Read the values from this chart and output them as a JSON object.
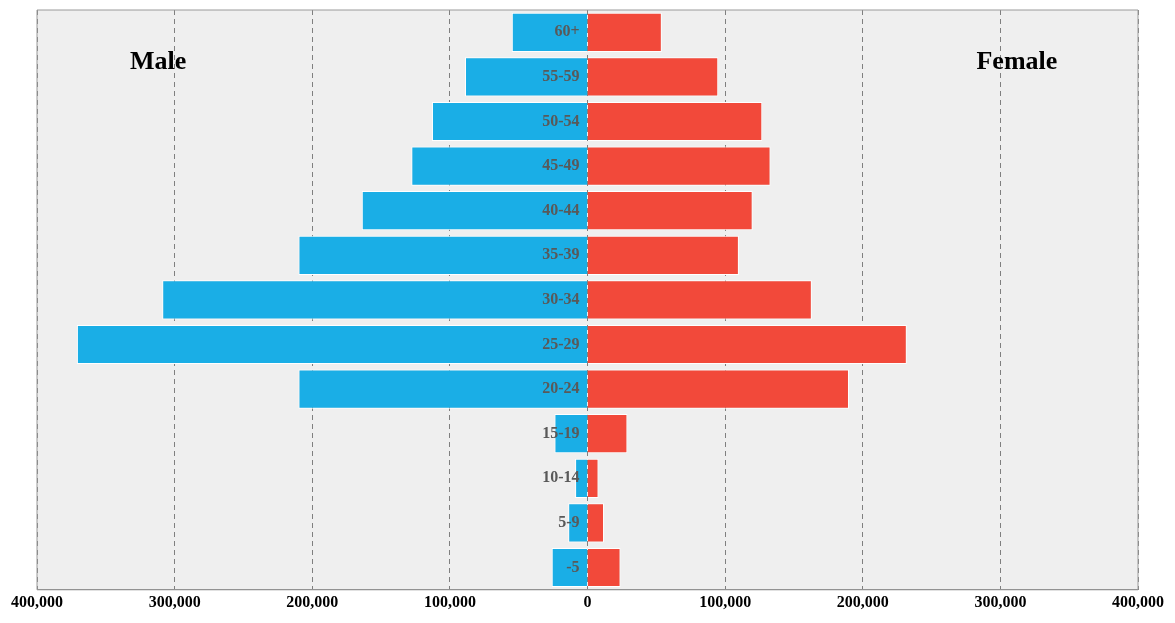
{
  "chart_data": {
    "type": "bar",
    "orientation": "horizontal",
    "stacked": true,
    "categories": [
      "60+",
      "55-59",
      "50-54",
      "45-49",
      "40-44",
      "35-39",
      "30-34",
      "25-29",
      "20-24",
      "15-19",
      "10-14",
      "5-9",
      "-5"
    ],
    "series": [
      {
        "color": "#1aaee6",
        "values": [
          -55000,
          -89000,
          -113000,
          -128000,
          -164000,
          -210000,
          -309000,
          -371000,
          -210000,
          -24000,
          -9000,
          -14000,
          -26000
        ]
      },
      {
        "color": "#f2493a",
        "values": [
          54000,
          95000,
          127000,
          133000,
          120000,
          110000,
          163000,
          232000,
          190000,
          29000,
          8000,
          12000,
          24000
        ]
      }
    ],
    "xlim": [
      -400000,
      400000
    ],
    "xticks": [
      {
        "value": -400000,
        "label": "400,000"
      },
      {
        "value": -300000,
        "label": "300,000"
      },
      {
        "value": -200000,
        "label": "200,000"
      },
      {
        "value": -100000,
        "label": "100,000"
      },
      {
        "value": 0,
        "label": "0"
      },
      {
        "value": 100000,
        "label": "100,000"
      },
      {
        "value": 200000,
        "label": "200,000"
      },
      {
        "value": 300000,
        "label": "300,000"
      },
      {
        "value": 400000,
        "label": "400,000"
      }
    ],
    "annotations": [
      "Male",
      "Female"
    ],
    "grid": "x",
    "legend": false
  }
}
